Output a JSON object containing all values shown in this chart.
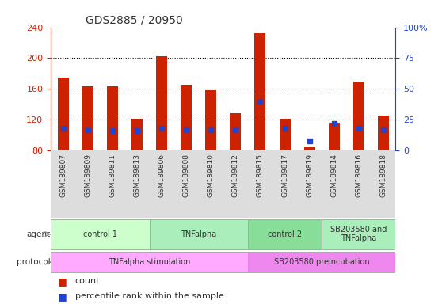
{
  "title": "GDS2885 / 20950",
  "samples": [
    "GSM189807",
    "GSM189809",
    "GSM189811",
    "GSM189813",
    "GSM189806",
    "GSM189808",
    "GSM189810",
    "GSM189812",
    "GSM189815",
    "GSM189817",
    "GSM189819",
    "GSM189814",
    "GSM189816",
    "GSM189818"
  ],
  "counts": [
    175,
    163,
    163,
    121,
    202,
    165,
    158,
    128,
    232,
    121,
    84,
    116,
    170,
    125
  ],
  "percentile": [
    18,
    17,
    16,
    16,
    18,
    17,
    17,
    17,
    40,
    18,
    8,
    22,
    18,
    17
  ],
  "ylim_left": [
    80,
    240
  ],
  "ylim_right": [
    0,
    100
  ],
  "yticks_left": [
    80,
    120,
    160,
    200,
    240
  ],
  "yticks_right": [
    0,
    25,
    50,
    75,
    100
  ],
  "bar_color": "#cc2200",
  "blue_color": "#2244cc",
  "agent_groups": [
    {
      "label": "control 1",
      "start": 0,
      "end": 3,
      "color": "#ccffcc"
    },
    {
      "label": "TNFalpha",
      "start": 4,
      "end": 7,
      "color": "#aaeebb"
    },
    {
      "label": "control 2",
      "start": 8,
      "end": 10,
      "color": "#88dd99"
    },
    {
      "label": "SB203580 and\nTNFalpha",
      "start": 11,
      "end": 13,
      "color": "#aaeebb"
    }
  ],
  "protocol_groups": [
    {
      "label": "TNFalpha stimulation",
      "start": 0,
      "end": 7,
      "color": "#ffaaff"
    },
    {
      "label": "SB203580 preincubation",
      "start": 8,
      "end": 13,
      "color": "#ee88ee"
    }
  ],
  "left_axis_color": "#cc2200",
  "right_axis_color": "#2244cc",
  "grid_color": "#000000",
  "label_bg_color": "#dddddd",
  "background": "#ffffff"
}
